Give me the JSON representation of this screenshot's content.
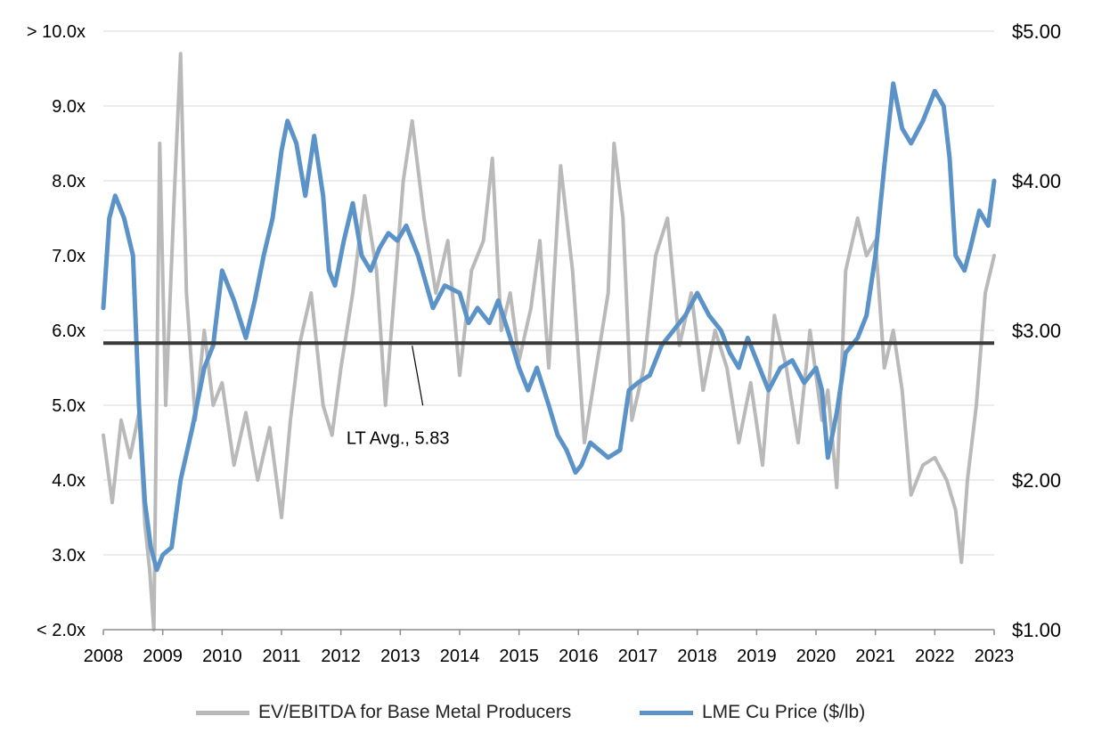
{
  "chart_data": {
    "type": "line",
    "x_ticks": [
      "2008",
      "2009",
      "2010",
      "2011",
      "2012",
      "2013",
      "2014",
      "2015",
      "2016",
      "2017",
      "2018",
      "2019",
      "2020",
      "2021",
      "2022",
      "2023"
    ],
    "xlim": [
      2008,
      2023
    ],
    "y_left": {
      "ticks": [
        "> 10.0x",
        "9.0x",
        "8.0x",
        "7.0x",
        "6.0x",
        "5.0x",
        "4.0x",
        "3.0x",
        "< 2.0x"
      ],
      "ylim": [
        2.0,
        10.0
      ]
    },
    "y_right": {
      "ticks": [
        "$5.00",
        "$4.00",
        "$3.00",
        "$2.00",
        "$1.00"
      ],
      "ylim": [
        1.0,
        5.0
      ]
    },
    "grid": true,
    "legend_position": "bottom",
    "annotation": {
      "text": "LT Avg.,  5.83",
      "value": 5.83
    },
    "reference_line": {
      "name": "LT Avg.",
      "value": 5.83,
      "color": "#3a3a3a"
    },
    "series": [
      {
        "name": "EV/EBITDA for Base Metal Producers",
        "axis": "left",
        "color": "#b9b9b9",
        "x": [
          2008.0,
          2008.15,
          2008.3,
          2008.45,
          2008.6,
          2008.7,
          2008.78,
          2008.85,
          2008.95,
          2009.05,
          2009.2,
          2009.3,
          2009.4,
          2009.55,
          2009.7,
          2009.85,
          2010.0,
          2010.2,
          2010.4,
          2010.6,
          2010.8,
          2011.0,
          2011.15,
          2011.3,
          2011.5,
          2011.7,
          2011.85,
          2012.0,
          2012.2,
          2012.4,
          2012.6,
          2012.75,
          2012.9,
          2013.05,
          2013.2,
          2013.4,
          2013.6,
          2013.8,
          2014.0,
          2014.2,
          2014.4,
          2014.55,
          2014.7,
          2014.85,
          2015.0,
          2015.2,
          2015.35,
          2015.5,
          2015.7,
          2015.9,
          2016.1,
          2016.3,
          2016.5,
          2016.6,
          2016.75,
          2016.9,
          2017.1,
          2017.3,
          2017.5,
          2017.7,
          2017.9,
          2018.1,
          2018.3,
          2018.5,
          2018.7,
          2018.9,
          2019.1,
          2019.3,
          2019.5,
          2019.7,
          2019.9,
          2020.1,
          2020.2,
          2020.35,
          2020.5,
          2020.7,
          2020.85,
          2021.0,
          2021.15,
          2021.3,
          2021.45,
          2021.6,
          2021.8,
          2022.0,
          2022.2,
          2022.35,
          2022.45,
          2022.55,
          2022.7,
          2022.85,
          2023.0
        ],
        "values": [
          4.6,
          3.7,
          4.8,
          4.3,
          4.9,
          3.4,
          2.8,
          2.0,
          8.5,
          5.0,
          7.9,
          9.7,
          6.5,
          4.8,
          6.0,
          5.0,
          5.3,
          4.2,
          4.9,
          4.0,
          4.7,
          3.5,
          4.8,
          5.8,
          6.5,
          5.0,
          4.6,
          5.5,
          6.5,
          7.8,
          6.8,
          5.0,
          6.5,
          8.0,
          8.8,
          7.5,
          6.5,
          7.2,
          5.4,
          6.8,
          7.2,
          8.3,
          6.0,
          6.5,
          5.6,
          6.3,
          7.2,
          5.5,
          8.2,
          6.8,
          4.5,
          5.5,
          6.5,
          8.5,
          7.5,
          4.8,
          5.5,
          7.0,
          7.5,
          5.8,
          6.5,
          5.2,
          6.0,
          5.5,
          4.5,
          5.3,
          4.2,
          6.2,
          5.5,
          4.5,
          6.0,
          4.8,
          5.2,
          3.9,
          6.8,
          7.5,
          7.0,
          7.2,
          5.5,
          6.0,
          5.2,
          3.8,
          4.2,
          4.3,
          4.0,
          3.6,
          2.9,
          4.0,
          5.0,
          6.5,
          7.0
        ]
      },
      {
        "name": "LME Cu Price ($/lb)",
        "axis": "right",
        "color": "#5b93c8",
        "x": [
          2008.0,
          2008.1,
          2008.2,
          2008.35,
          2008.5,
          2008.6,
          2008.7,
          2008.8,
          2008.9,
          2009.0,
          2009.15,
          2009.3,
          2009.5,
          2009.7,
          2009.85,
          2010.0,
          2010.2,
          2010.4,
          2010.55,
          2010.7,
          2010.85,
          2011.0,
          2011.1,
          2011.25,
          2011.4,
          2011.55,
          2011.7,
          2011.8,
          2011.9,
          2012.05,
          2012.2,
          2012.35,
          2012.5,
          2012.65,
          2012.8,
          2012.95,
          2013.1,
          2013.3,
          2013.55,
          2013.75,
          2014.0,
          2014.15,
          2014.3,
          2014.5,
          2014.65,
          2014.85,
          2015.0,
          2015.15,
          2015.3,
          2015.5,
          2015.65,
          2015.8,
          2015.95,
          2016.05,
          2016.2,
          2016.35,
          2016.5,
          2016.7,
          2016.85,
          2017.0,
          2017.2,
          2017.4,
          2017.6,
          2017.8,
          2018.0,
          2018.2,
          2018.4,
          2018.55,
          2018.7,
          2018.85,
          2019.0,
          2019.2,
          2019.4,
          2019.6,
          2019.8,
          2020.0,
          2020.1,
          2020.2,
          2020.35,
          2020.5,
          2020.7,
          2020.85,
          2021.0,
          2021.15,
          2021.3,
          2021.45,
          2021.6,
          2021.8,
          2022.0,
          2022.15,
          2022.25,
          2022.35,
          2022.5,
          2022.6,
          2022.75,
          2022.9,
          2023.0
        ],
        "values": [
          3.15,
          3.75,
          3.9,
          3.75,
          3.5,
          2.5,
          1.85,
          1.55,
          1.4,
          1.5,
          1.55,
          2.0,
          2.35,
          2.75,
          2.9,
          3.4,
          3.2,
          2.95,
          3.2,
          3.5,
          3.75,
          4.2,
          4.4,
          4.25,
          3.9,
          4.3,
          3.9,
          3.4,
          3.3,
          3.6,
          3.85,
          3.5,
          3.4,
          3.55,
          3.65,
          3.6,
          3.7,
          3.5,
          3.15,
          3.3,
          3.25,
          3.05,
          3.15,
          3.05,
          3.2,
          2.95,
          2.75,
          2.6,
          2.75,
          2.5,
          2.3,
          2.2,
          2.05,
          2.1,
          2.25,
          2.2,
          2.15,
          2.2,
          2.6,
          2.65,
          2.7,
          2.9,
          3.0,
          3.1,
          3.25,
          3.1,
          3.0,
          2.85,
          2.75,
          2.95,
          2.8,
          2.6,
          2.75,
          2.8,
          2.65,
          2.75,
          2.6,
          2.15,
          2.45,
          2.85,
          2.95,
          3.1,
          3.5,
          4.1,
          4.65,
          4.35,
          4.25,
          4.4,
          4.6,
          4.5,
          4.15,
          3.5,
          3.4,
          3.55,
          3.8,
          3.7,
          4.0
        ]
      }
    ]
  },
  "legend": {
    "items": [
      {
        "label": "EV/EBITDA for Base Metal Producers",
        "color": "#b9b9b9"
      },
      {
        "label": "LME Cu Price ($/lb)",
        "color": "#5b93c8"
      }
    ]
  }
}
